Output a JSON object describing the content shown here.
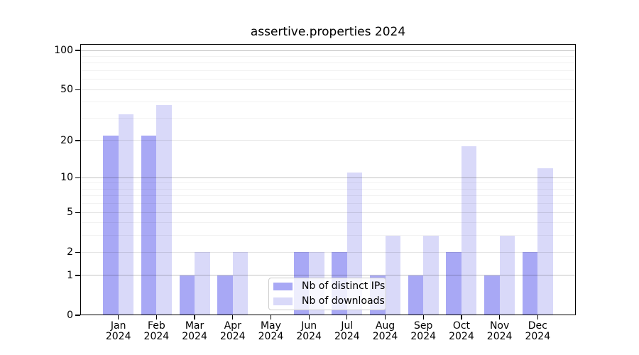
{
  "title": "assertive.properties 2024",
  "chart_data": {
    "type": "bar",
    "title": "assertive.properties 2024",
    "x_months": [
      "Jan",
      "Feb",
      "Mar",
      "Apr",
      "May",
      "Jun",
      "Jul",
      "Aug",
      "Sep",
      "Oct",
      "Nov",
      "Dec"
    ],
    "x_year": "2024",
    "series": [
      {
        "name": "Nb of distinct IPs",
        "color": "#a8a8f5",
        "values": [
          22,
          22,
          1,
          1,
          0,
          2,
          2,
          1,
          1,
          2,
          1,
          2
        ]
      },
      {
        "name": "Nb of downloads",
        "color": "#d9d9f9",
        "values": [
          32,
          38,
          2,
          2,
          0,
          2,
          11,
          3,
          3,
          18,
          3,
          12
        ]
      }
    ],
    "yscale": "symlog",
    "ylim": [
      0,
      112
    ],
    "y_major_ticks": [
      100,
      50,
      20,
      10,
      5,
      2,
      1,
      0
    ],
    "y_minor_gridlines": [
      3,
      4,
      6,
      7,
      8,
      9,
      30,
      40,
      60,
      70,
      80,
      90
    ],
    "grid": true,
    "legend_position": "lower-center"
  },
  "legend": {
    "items": [
      {
        "label": "Nb of distinct IPs",
        "color": "#a8a8f5"
      },
      {
        "label": "Nb of downloads",
        "color": "#d9d9f9"
      }
    ]
  }
}
